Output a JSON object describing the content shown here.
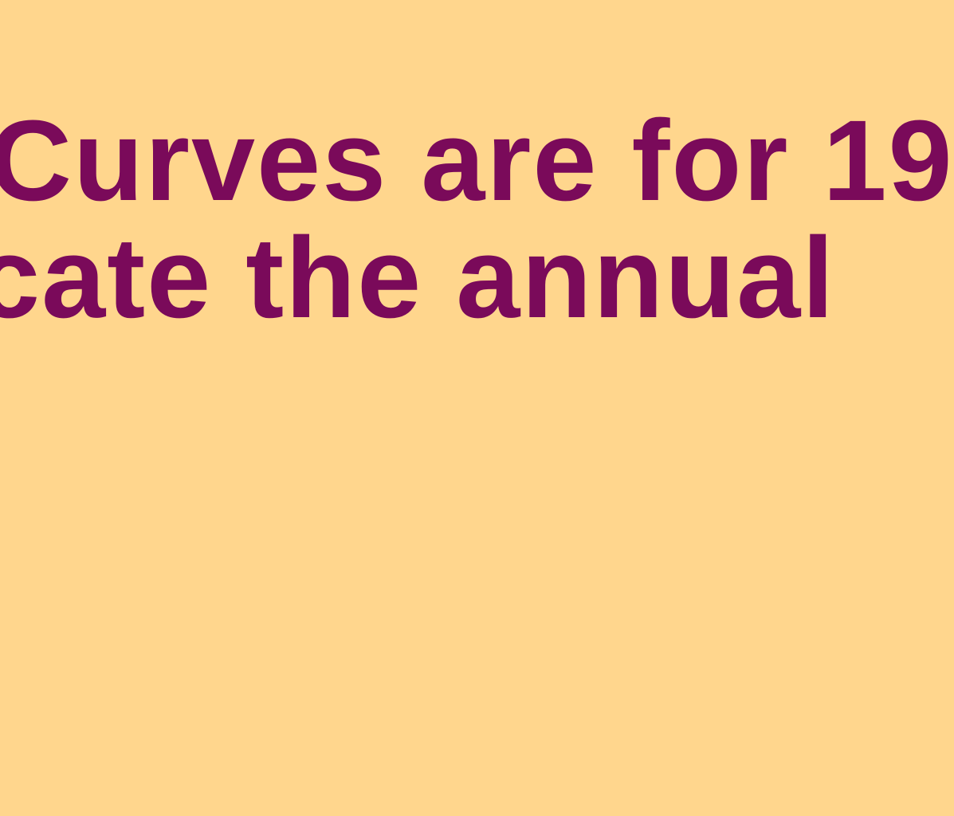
{
  "colors": {
    "background": "#FFD68D",
    "text": "#7A0A5A"
  },
  "text": {
    "line_1": "Curves are for 19",
    "line_2": "cate the annual"
  }
}
